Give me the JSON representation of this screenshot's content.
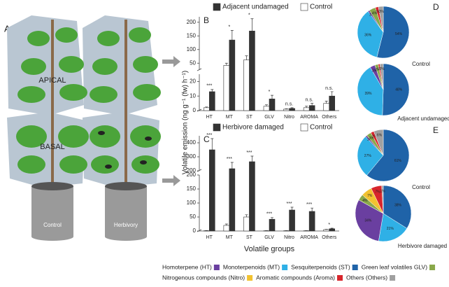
{
  "illustration": {
    "panel": "A",
    "apical": "APICAL",
    "basal": "BASAL",
    "left_pot": "Control",
    "right_pot": "Herbivory"
  },
  "legend": [
    {
      "label": "Homoterpene (HT)",
      "color": "#6a3fa0"
    },
    {
      "label": "Monoterpenoids (MT)",
      "color": "#2fb0e6"
    },
    {
      "label": "Sesquiterpenoids (ST)",
      "color": "#1f63a8"
    },
    {
      "label": "Green leaf volatiles GLV)",
      "color": "#8aa84a"
    },
    {
      "label": "Nitrogenous compounds (Nitro)",
      "color": "#f2c230"
    },
    {
      "label": "Aromatic compounds (Aroma)",
      "color": "#d8262c"
    },
    {
      "label": "Others (Others)",
      "color": "#a0a0a0"
    }
  ],
  "chart_data": [
    {
      "type": "bar",
      "panel": "B",
      "ylabel": "Volatile emission (ng g⁻¹ (fw) h⁻¹)",
      "categories": [
        "HT",
        "MT",
        "ST",
        "GLV",
        "Nitro",
        "AROMA",
        "Others"
      ],
      "series": [
        {
          "name": "Adjacent undamaged",
          "color": "#333333",
          "values": [
            13,
            135,
            168,
            8,
            1.5,
            3.5,
            10
          ],
          "errors": [
            1.5,
            35,
            45,
            2.5,
            0.5,
            1.5,
            3
          ]
        },
        {
          "name": "Control",
          "color": "#ffffff",
          "values": [
            2,
            42,
            62,
            3,
            1,
            2,
            5
          ],
          "errors": [
            0.5,
            8,
            15,
            1,
            0.3,
            1,
            1.5
          ]
        }
      ],
      "significance": [
        "***",
        "*",
        "*",
        "*",
        "n.s.",
        "n.s.",
        "n.s."
      ],
      "axis_segments": [
        {
          "ylim": [
            0,
            25
          ],
          "yticks": [
            0,
            10,
            20
          ]
        },
        {
          "ylim": [
            25,
            220
          ],
          "yticks": [
            50,
            100,
            150,
            200
          ]
        }
      ]
    },
    {
      "type": "bar",
      "panel": "C",
      "xlabel": "Volatile groups",
      "categories": [
        "HT",
        "MT",
        "ST",
        "GLV",
        "Nitro",
        "AROMA",
        "Others"
      ],
      "series": [
        {
          "name": "Herbivore damaged",
          "color": "#333333",
          "values": [
            350,
            215,
            265,
            42,
            75,
            70,
            8
          ],
          "errors": [
            80,
            45,
            40,
            6,
            10,
            12,
            2
          ]
        },
        {
          "name": "Control",
          "color": "#ffffff",
          "values": [
            1,
            20,
            50,
            1,
            1,
            1,
            5
          ],
          "errors": [
            0.5,
            5,
            8,
            0.3,
            0.3,
            0.3,
            1
          ]
        }
      ],
      "significance": [
        "***",
        "***",
        "***",
        "***",
        "***",
        "***",
        "*"
      ],
      "axis_segments": [
        {
          "ylim": [
            0,
            200
          ],
          "yticks": [
            0,
            50,
            100,
            150,
            200
          ]
        },
        {
          "ylim": [
            200,
            450
          ],
          "yticks": [
            200,
            300,
            400
          ]
        }
      ]
    },
    {
      "type": "pie",
      "panel": "D",
      "title": "Control",
      "values": [
        54,
        36,
        1,
        4,
        2,
        3
      ],
      "value_labels": [
        "54%",
        "36%",
        "1%",
        "4%",
        "2%",
        "3%"
      ],
      "colors": [
        "#1f63a8",
        "#2fb0e6",
        "#6a3fa0",
        "#8aa84a",
        "#d8262c",
        "#a0a0a0"
      ]
    },
    {
      "type": "pie",
      "title": "Adjacent undamaged",
      "values": [
        48,
        39,
        3,
        2,
        1,
        2
      ],
      "value_labels": [
        "48%",
        "39%",
        "3%",
        "2%",
        "1%",
        "2%"
      ],
      "colors": [
        "#1f63a8",
        "#2fb0e6",
        "#6a3fa0",
        "#8aa84a",
        "#d8262c",
        "#a0a0a0"
      ]
    },
    {
      "type": "pie",
      "panel": "E",
      "title": "Control",
      "values": [
        61,
        27,
        1,
        3,
        2,
        6
      ],
      "value_labels": [
        "61%",
        "27%",
        "1%",
        "3%",
        "2%",
        "6%"
      ],
      "colors": [
        "#1f63a8",
        "#2fb0e6",
        "#6a3fa0",
        "#8aa84a",
        "#d8262c",
        "#a0a0a0"
      ]
    },
    {
      "type": "pie",
      "title": "Herbivore damaged",
      "values": [
        38,
        21,
        34,
        4,
        7,
        7,
        1
      ],
      "value_labels": [
        "38%",
        "21%",
        "34%",
        "4%",
        "7%",
        "7%",
        "1%"
      ],
      "colors": [
        "#1f63a8",
        "#2fb0e6",
        "#6a3fa0",
        "#8aa84a",
        "#f2c230",
        "#d8262c",
        "#a0a0a0"
      ]
    }
  ]
}
